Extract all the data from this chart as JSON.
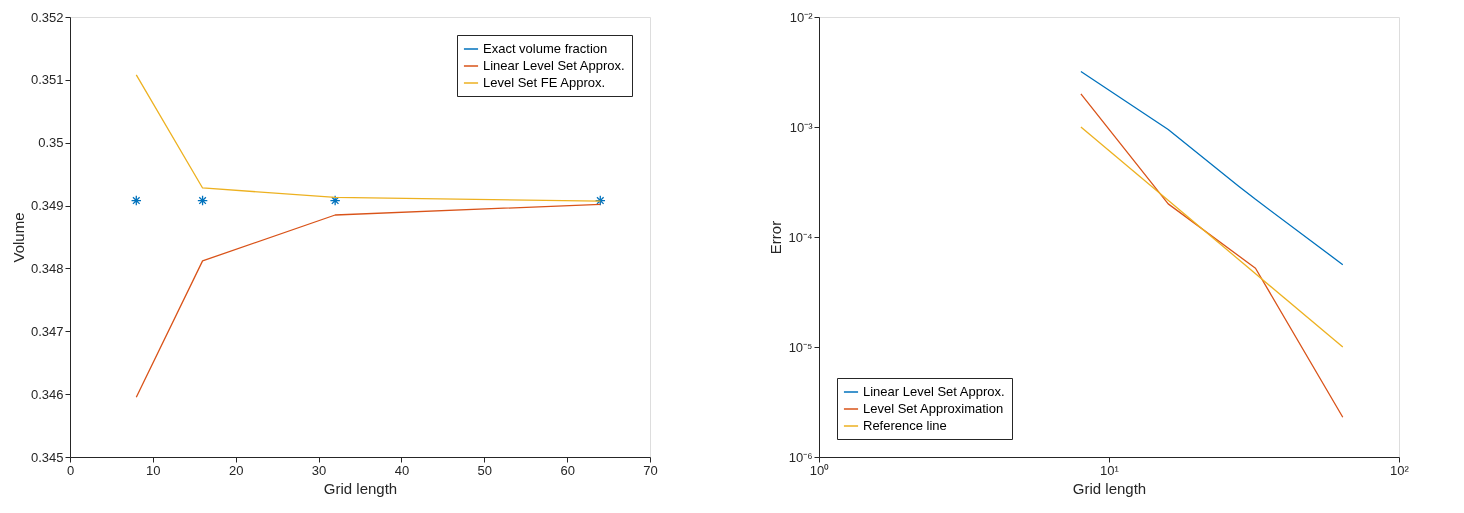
{
  "chart_data": [
    {
      "type": "line",
      "xlabel": "Grid length",
      "ylabel": "Volume",
      "xlim": [
        0,
        70
      ],
      "xticks": [
        0,
        10,
        20,
        30,
        40,
        50,
        60,
        70
      ],
      "ylim": [
        0.345,
        0.352
      ],
      "yticks": [
        0.345,
        0.346,
        0.347,
        0.348,
        0.349,
        0.35,
        0.351,
        0.352
      ],
      "grid": false,
      "legend": "top right",
      "series": [
        {
          "name": "Exact volume fraction",
          "type": "scatter",
          "marker": "cross",
          "color": "#0072bd",
          "x": [
            8,
            16,
            32,
            64
          ],
          "values": [
            0.34908,
            0.34908,
            0.34908,
            0.34908
          ]
        },
        {
          "name": "Linear Level Set Approx.",
          "color": "#d95319",
          "x": [
            8,
            16,
            32,
            64
          ],
          "values": [
            0.34595,
            0.34812,
            0.34885,
            0.34902
          ]
        },
        {
          "name": "Level Set FE Approx.",
          "color": "#edb120",
          "x": [
            8,
            16,
            32,
            64
          ],
          "values": [
            0.35108,
            0.34928,
            0.34913,
            0.34907
          ]
        }
      ]
    },
    {
      "type": "line",
      "xlabel": "Grid length",
      "ylabel": "Error",
      "log": "xy",
      "xlim": [
        1,
        100
      ],
      "xticks": [
        {
          "value": 1,
          "label": "10⁰"
        },
        {
          "value": 10,
          "label": "10¹"
        },
        {
          "value": 100,
          "label": "10²"
        }
      ],
      "ylim": [
        1e-06,
        0.01
      ],
      "yticks": [
        {
          "value": 1e-06,
          "label": "10⁻⁶"
        },
        {
          "value": 1e-05,
          "label": "10⁻⁵"
        },
        {
          "value": 0.0001,
          "label": "10⁻⁴"
        },
        {
          "value": 0.001,
          "label": "10⁻³"
        },
        {
          "value": 0.01,
          "label": "10⁻²"
        }
      ],
      "grid": false,
      "legend": "bottom left",
      "series": [
        {
          "name": "Linear Level Set Approx.",
          "color": "#0072bd",
          "x": [
            8,
            16,
            28,
            32,
            64
          ],
          "values": [
            0.0032,
            0.00095,
            0.00029,
            0.00022,
            5.6e-05
          ]
        },
        {
          "name": "Level Set Approximation",
          "color": "#d95319",
          "x": [
            8,
            16,
            32,
            64
          ],
          "values": [
            0.002,
            0.0002,
            5.2e-05,
            2.3e-06
          ]
        },
        {
          "name": "Reference line",
          "color": "#edb120",
          "x": [
            8,
            64
          ],
          "values": [
            0.001,
            1e-05
          ]
        }
      ]
    }
  ]
}
